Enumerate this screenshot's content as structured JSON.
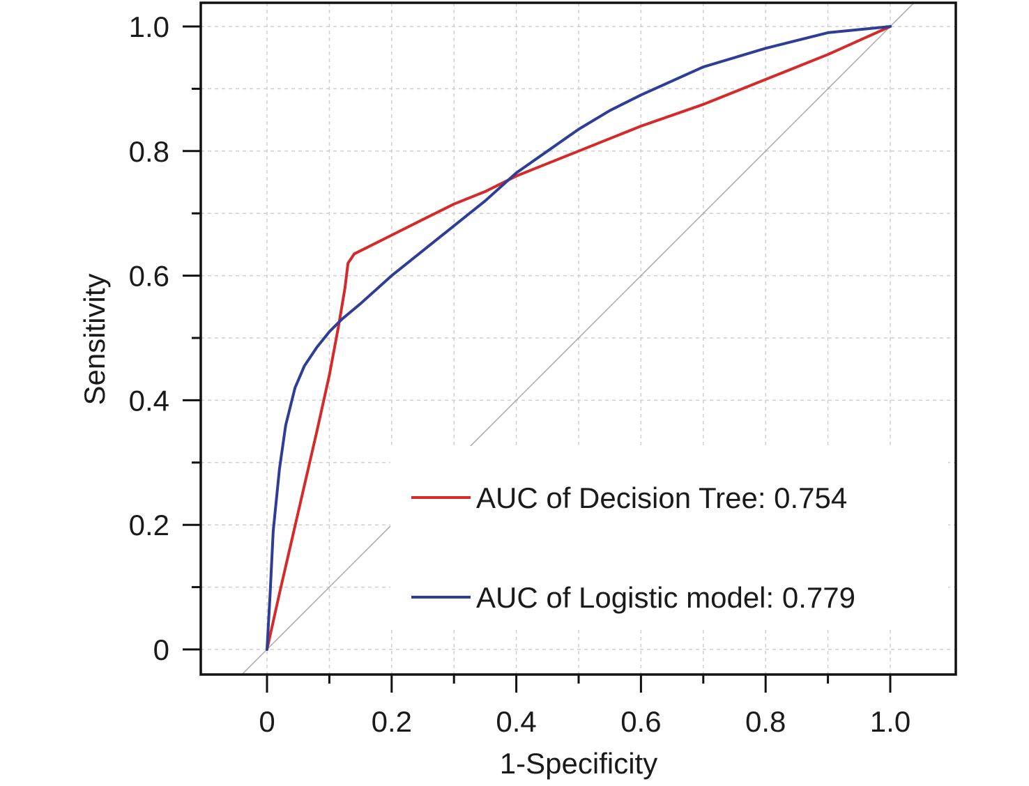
{
  "chart_data": {
    "type": "line",
    "xlabel": "1-Specificity",
    "ylabel": "Sensitivity",
    "xlim": [
      -0.1,
      1.05
    ],
    "ylim": [
      -0.04,
      1.04
    ],
    "x_ticks": [
      0,
      0.2,
      0.4,
      0.6,
      0.8,
      1.0
    ],
    "x_tick_labels": [
      "0",
      "0.2",
      "0.4",
      "0.6",
      "0.8",
      "1.0"
    ],
    "y_ticks": [
      0,
      0.2,
      0.4,
      0.6,
      0.8,
      1.0
    ],
    "y_tick_labels": [
      "0",
      "0.2",
      "0.4",
      "0.6",
      "0.8",
      "1.0"
    ],
    "grid": true,
    "legend_position": "bottom-right",
    "reference_line": {
      "from": [
        -0.04,
        -0.04
      ],
      "to": [
        1.04,
        1.04
      ],
      "color": "#a8a8a8"
    },
    "series": [
      {
        "name": "AUC of Decision Tree: 0.754",
        "color": "#d42a2a",
        "x": [
          0,
          0.02,
          0.05,
          0.08,
          0.1,
          0.115,
          0.125,
          0.13,
          0.14,
          0.16,
          0.2,
          0.25,
          0.3,
          0.35,
          0.4,
          0.45,
          0.5,
          0.6,
          0.7,
          0.8,
          0.9,
          1.0
        ],
        "y": [
          0,
          0.09,
          0.22,
          0.35,
          0.44,
          0.52,
          0.58,
          0.62,
          0.635,
          0.645,
          0.665,
          0.69,
          0.715,
          0.735,
          0.76,
          0.78,
          0.8,
          0.84,
          0.875,
          0.915,
          0.955,
          1.0
        ]
      },
      {
        "name": "AUC of Logistic model: 0.779",
        "color": "#2e3d96",
        "x": [
          0,
          0.005,
          0.01,
          0.02,
          0.03,
          0.045,
          0.06,
          0.08,
          0.1,
          0.12,
          0.15,
          0.2,
          0.25,
          0.3,
          0.35,
          0.4,
          0.45,
          0.5,
          0.55,
          0.6,
          0.7,
          0.8,
          0.9,
          1.0
        ],
        "y": [
          0,
          0.09,
          0.19,
          0.29,
          0.36,
          0.42,
          0.455,
          0.485,
          0.51,
          0.53,
          0.555,
          0.6,
          0.64,
          0.68,
          0.72,
          0.765,
          0.8,
          0.835,
          0.865,
          0.89,
          0.935,
          0.965,
          0.99,
          1.0
        ]
      }
    ]
  }
}
